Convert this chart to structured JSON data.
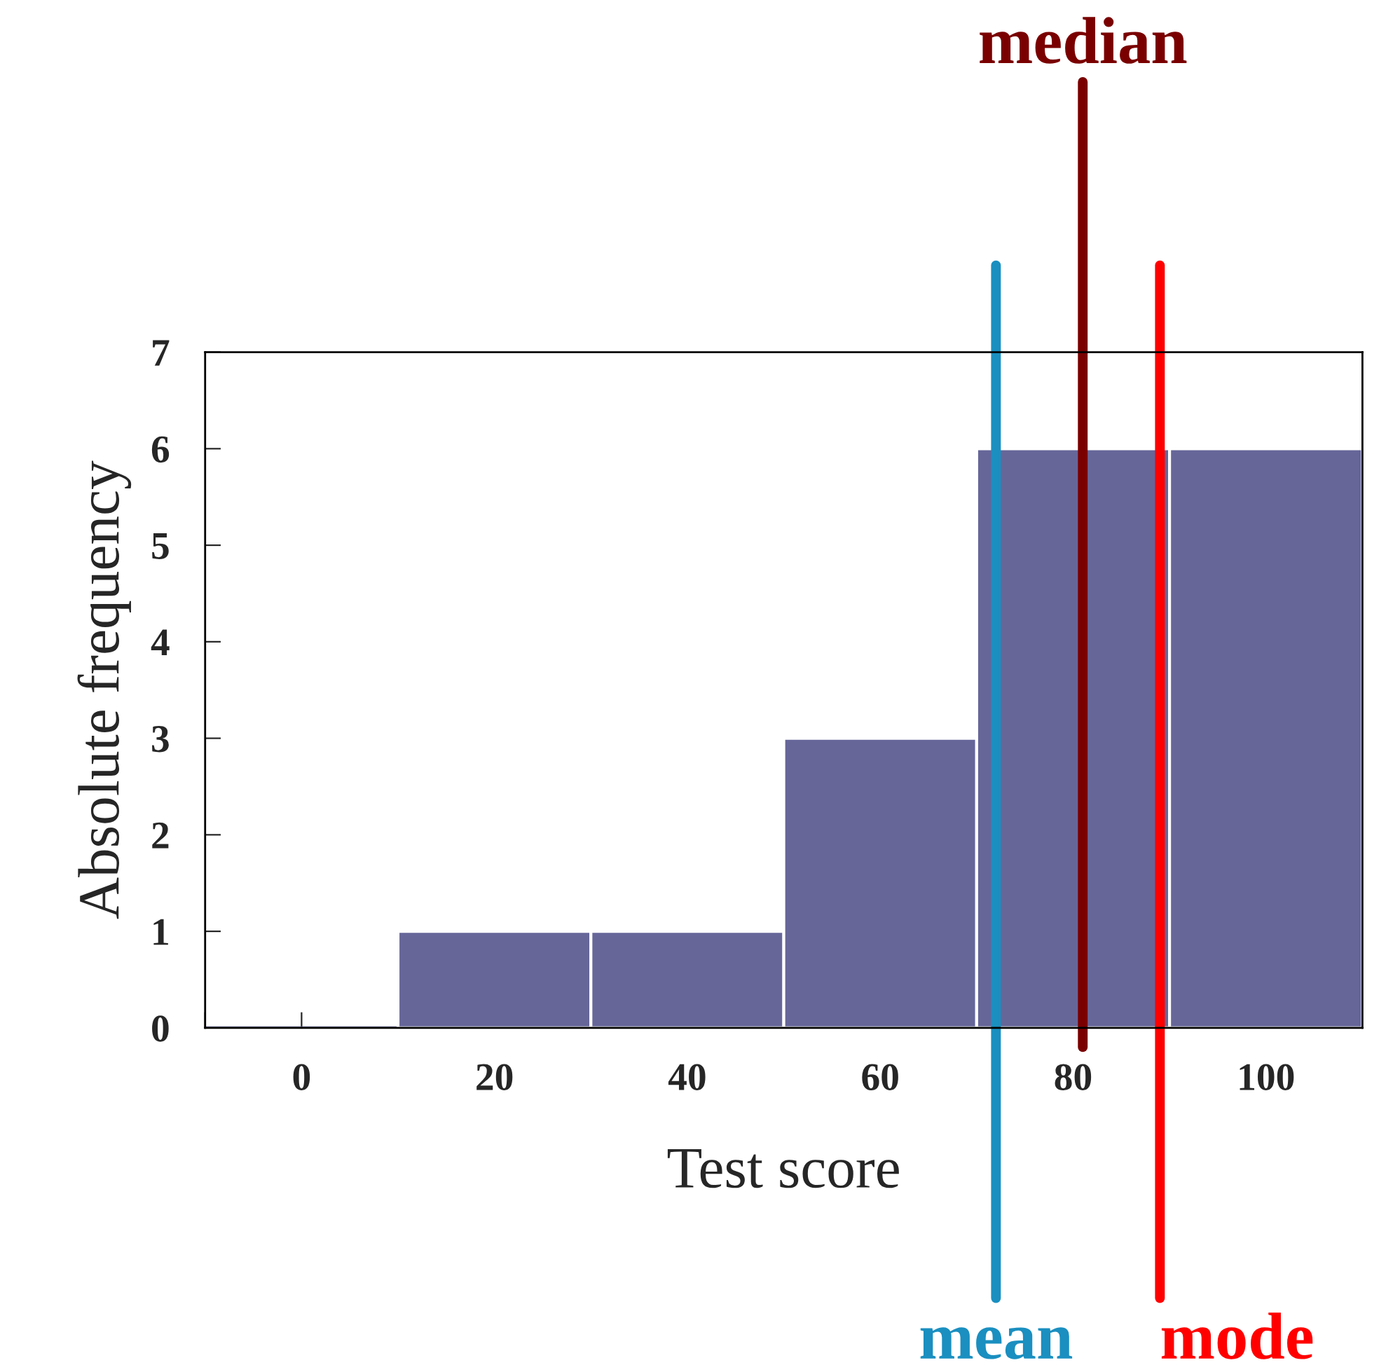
{
  "chart_data": {
    "type": "histogram",
    "xlabel": "Test score",
    "ylabel": "Absolute frequency",
    "bins": [
      -10,
      10,
      30,
      50,
      70,
      90,
      110
    ],
    "values": [
      0,
      1,
      1,
      3,
      6,
      6
    ],
    "color": "#666699",
    "xlim": [
      -10,
      110
    ],
    "ylim": [
      0,
      7
    ],
    "yticks": [
      0,
      1,
      2,
      3,
      4,
      5,
      6,
      7
    ],
    "xticks": [
      {
        "value": -10,
        "label": null
      },
      0,
      {
        "value": 10,
        "label": null
      },
      20,
      {
        "value": 30,
        "label": null
      },
      40,
      {
        "value": 50,
        "label": null
      },
      60,
      {
        "value": 70,
        "label": null
      },
      80,
      {
        "value": 90,
        "label": null
      },
      100
    ],
    "ref_lines": [
      {
        "axis": "x",
        "value": 72,
        "label": "mean",
        "color": "#1a8fc0"
      },
      {
        "axis": "x",
        "value": 81,
        "label": "median",
        "color": "#7a0000"
      },
      {
        "axis": "x",
        "value": 89,
        "label": "mode",
        "color": "#ff0000"
      }
    ],
    "grid": false,
    "legend": false
  }
}
